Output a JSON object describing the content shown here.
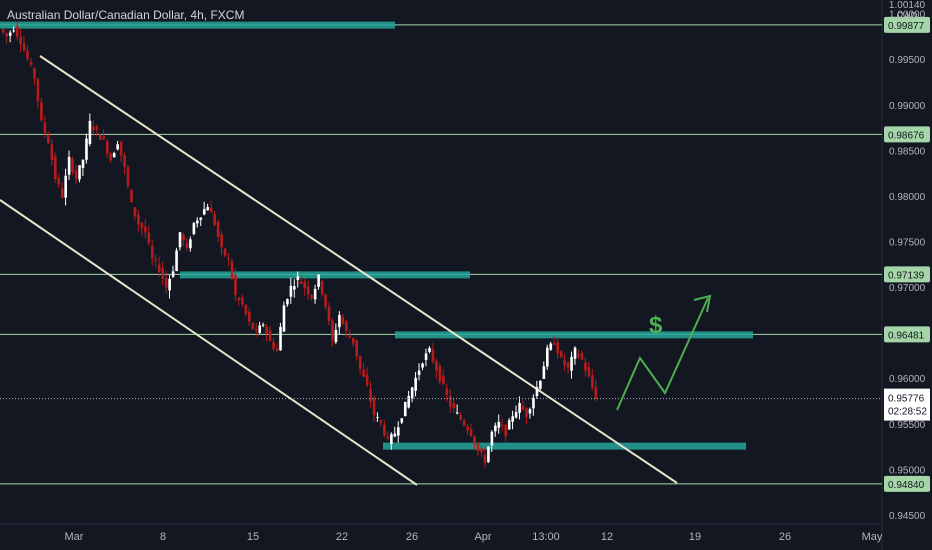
{
  "header": {
    "symbol_title": "Australian Dollar/Canadian Dollar, 4h, FXCM",
    "currency_top": "1.00140",
    "currency": "CAD"
  },
  "chart_data": {
    "type": "candlestick",
    "title": "Australian Dollar/Canadian Dollar, 4h, FXCM",
    "y_axis": {
      "ticks": [
        "1.00000",
        "0.99500",
        "0.99000",
        "0.98500",
        "0.98000",
        "0.97500",
        "0.97000",
        "0.96500",
        "0.96000",
        "0.95500",
        "0.95000",
        "0.94500"
      ],
      "range": [
        0.944,
        1.0015
      ]
    },
    "x_axis": {
      "ticks": [
        "Mar",
        "8",
        "15",
        "22",
        "26",
        "Apr",
        "13:00",
        "12",
        "19",
        "26",
        "May"
      ]
    },
    "horizontal_levels": [
      {
        "value": 0.99877,
        "label": "0.99877"
      },
      {
        "value": 0.98676,
        "label": "0.98676"
      },
      {
        "value": 0.97139,
        "label": "0.97139"
      },
      {
        "value": 0.96481,
        "label": "0.96481"
      },
      {
        "value": 0.9484,
        "label": "0.94840"
      }
    ],
    "last_price": {
      "value": 0.95776,
      "label": "0.95776",
      "countdown": "02:28:52"
    },
    "annotation": "$",
    "price_path": [
      0.9983,
      0.9975,
      0.9985,
      0.997,
      0.995,
      0.993,
      0.988,
      0.986,
      0.982,
      0.98,
      0.984,
      0.982,
      0.984,
      0.988,
      0.987,
      0.986,
      0.984,
      0.986,
      0.983,
      0.979,
      0.977,
      0.976,
      0.973,
      0.972,
      0.97,
      0.972,
      0.976,
      0.974,
      0.977,
      0.978,
      0.979,
      0.977,
      0.974,
      0.973,
      0.969,
      0.968,
      0.966,
      0.965,
      0.966,
      0.964,
      0.963,
      0.968,
      0.97,
      0.971,
      0.97,
      0.969,
      0.971,
      0.968,
      0.964,
      0.967,
      0.965,
      0.964,
      0.961,
      0.959,
      0.956,
      0.955,
      0.953,
      0.954,
      0.956,
      0.958,
      0.96,
      0.962,
      0.963,
      0.961,
      0.959,
      0.957,
      0.956,
      0.955,
      0.954,
      0.952,
      0.951,
      0.954,
      0.955,
      0.954,
      0.956,
      0.957,
      0.956,
      0.958,
      0.96,
      0.963,
      0.964,
      0.962,
      0.961,
      0.963,
      0.962,
      0.96,
      0.958
    ]
  }
}
